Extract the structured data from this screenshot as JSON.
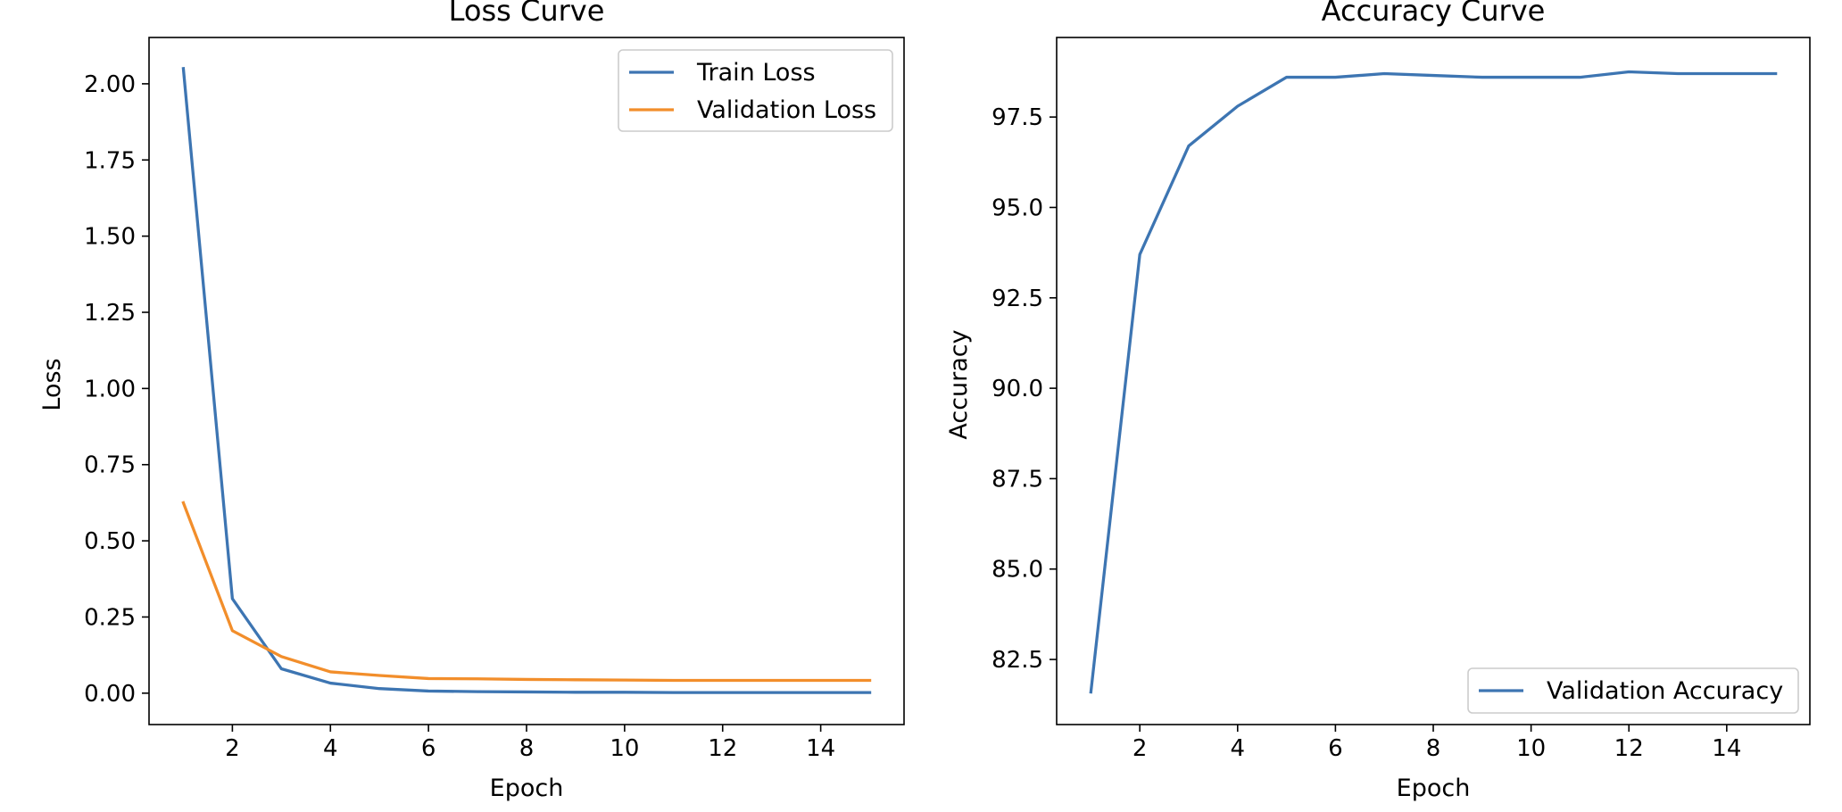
{
  "chart_data": [
    {
      "type": "line",
      "title": "Loss Curve",
      "xlabel": "Epoch",
      "ylabel": "Loss",
      "xlim": [
        0.3,
        15.7
      ],
      "ylim": [
        -0.103,
        2.152
      ],
      "xticks": [
        2,
        4,
        6,
        8,
        10,
        12,
        14
      ],
      "xtick_labels": [
        "2",
        "4",
        "6",
        "8",
        "10",
        "12",
        "14"
      ],
      "yticks": [
        0,
        0.25,
        0.5,
        0.75,
        1.0,
        1.25,
        1.5,
        1.75,
        2.0
      ],
      "ytick_labels": [
        "0.00",
        "0.25",
        "0.50",
        "0.75",
        "1.00",
        "1.25",
        "1.50",
        "1.75",
        "2.00"
      ],
      "grid": false,
      "legend_position": "top-right",
      "x": [
        1,
        2,
        3,
        4,
        5,
        6,
        7,
        8,
        9,
        10,
        11,
        12,
        13,
        14,
        15
      ],
      "series": [
        {
          "name": "Train Loss",
          "color": "#3d75b2",
          "values": [
            2.05,
            0.31,
            0.08,
            0.033,
            0.015,
            0.007,
            0.005,
            0.004,
            0.003,
            0.003,
            0.002,
            0.002,
            0.002,
            0.002,
            0.002
          ]
        },
        {
          "name": "Validation Loss",
          "color": "#f28e2b",
          "values": [
            0.625,
            0.205,
            0.12,
            0.07,
            0.058,
            0.048,
            0.047,
            0.045,
            0.044,
            0.043,
            0.042,
            0.042,
            0.042,
            0.042,
            0.042
          ]
        }
      ]
    },
    {
      "type": "line",
      "title": "Accuracy Curve",
      "xlabel": "Epoch",
      "ylabel": "Accuracy",
      "xlim": [
        0.3,
        15.7
      ],
      "ylim": [
        80.7,
        99.7
      ],
      "xticks": [
        2,
        4,
        6,
        8,
        10,
        12,
        14
      ],
      "xtick_labels": [
        "2",
        "4",
        "6",
        "8",
        "10",
        "12",
        "14"
      ],
      "yticks": [
        82.5,
        85.0,
        87.5,
        90.0,
        92.5,
        95.0,
        97.5
      ],
      "ytick_labels": [
        "82.5",
        "85.0",
        "87.5",
        "90.0",
        "92.5",
        "95.0",
        "97.5"
      ],
      "grid": false,
      "legend_position": "bottom-right",
      "x": [
        1,
        2,
        3,
        4,
        5,
        6,
        7,
        8,
        9,
        10,
        11,
        12,
        13,
        14,
        15
      ],
      "series": [
        {
          "name": "Validation Accuracy",
          "color": "#3d75b2",
          "values": [
            81.6,
            93.7,
            96.7,
            97.8,
            98.6,
            98.6,
            98.7,
            98.65,
            98.6,
            98.6,
            98.6,
            98.75,
            98.7,
            98.7,
            98.7
          ]
        }
      ]
    }
  ]
}
